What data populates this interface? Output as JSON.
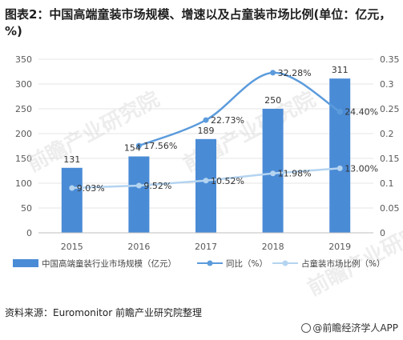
{
  "header": {
    "title": "图表2：中国高端童装市场规模、增速以及占童装市场比例(单位：亿元，%)"
  },
  "footer": {
    "source": "资料来源：Euromonitor 前瞻产业研究院整理",
    "brand": "@前瞻经济学人APP"
  },
  "watermark": {
    "text": "前瞻产业研究院"
  },
  "colors": {
    "bar": "#4a8bd6",
    "growth_line": "#5b9bdc",
    "share_line": "#b4d4f0",
    "axis_text": "#595959",
    "grid": "#e6e6e6"
  },
  "chart_data": {
    "type": "bar",
    "categories": [
      "2015",
      "2016",
      "2017",
      "2018",
      "2019"
    ],
    "series": [
      {
        "name": "中国高端童装行业市场规模（亿元）",
        "type": "bar",
        "axis": "left",
        "values": [
          131,
          154,
          189,
          250,
          311
        ],
        "labels": [
          "131",
          "154",
          "189",
          "250",
          "311"
        ]
      },
      {
        "name": "同比（%）",
        "type": "line",
        "axis": "right",
        "values": [
          null,
          0.1756,
          0.2273,
          0.3228,
          0.244
        ],
        "labels": [
          "",
          "17.56%",
          "22.73%",
          "32.28%",
          "24.40%"
        ]
      },
      {
        "name": "占童装市场比例（%）",
        "type": "line",
        "axis": "right",
        "values": [
          0.0903,
          0.0952,
          0.1052,
          0.1198,
          0.13
        ],
        "labels": [
          "9.03%",
          "9.52%",
          "10.52%",
          "11.98%",
          "13.00%"
        ]
      }
    ],
    "y_left": {
      "min": 0,
      "max": 350,
      "ticks": [
        "0",
        "50",
        "100",
        "150",
        "200",
        "250",
        "300",
        "350"
      ]
    },
    "y_right": {
      "min": 0,
      "max": 0.35,
      "ticks": [
        "0",
        "0.05",
        "0.1",
        "0.15",
        "0.2",
        "0.25",
        "0.3",
        "0.35"
      ]
    },
    "grid": true,
    "legend_position": "bottom"
  }
}
